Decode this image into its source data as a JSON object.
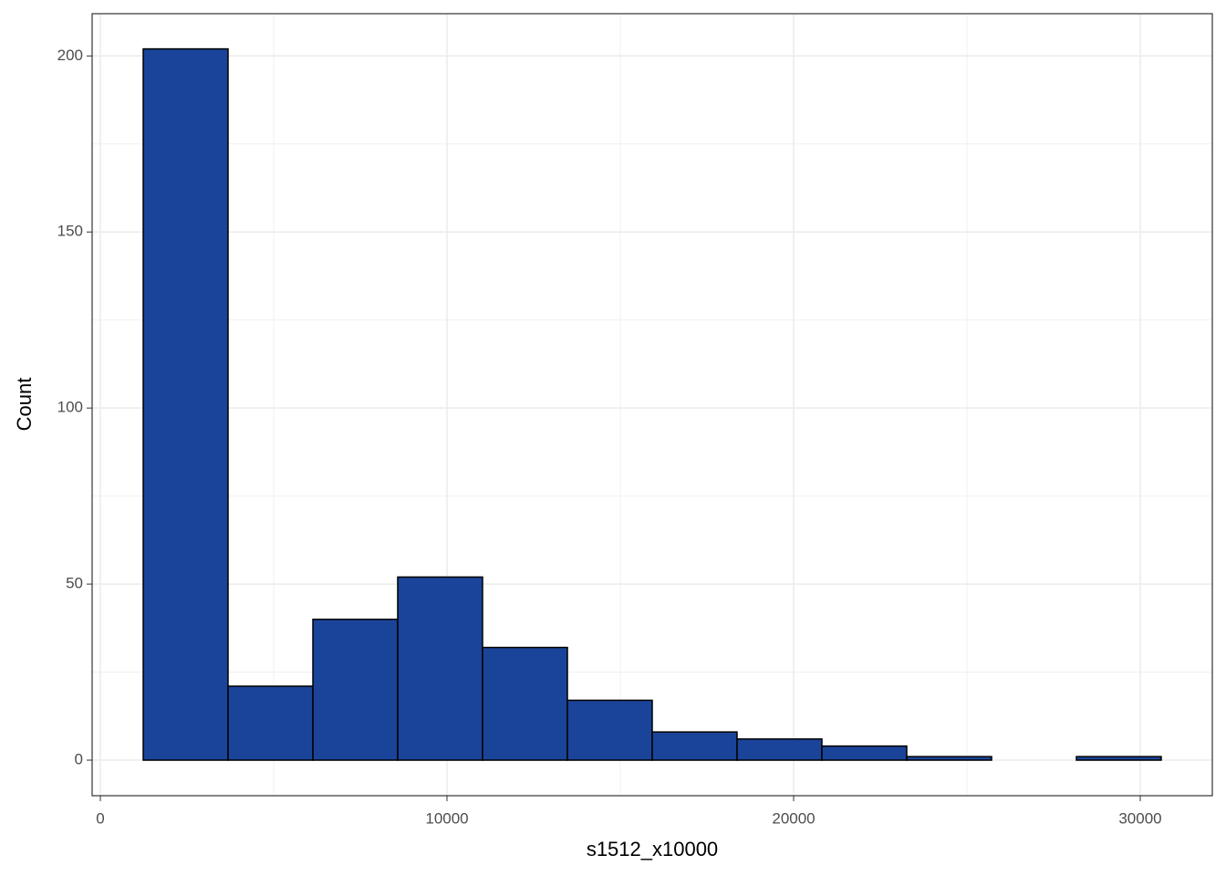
{
  "chart_data": {
    "type": "histogram",
    "xlabel": "s1512_x10000",
    "ylabel": "Count",
    "bins": [
      1237,
      3684,
      6132,
      8579,
      11026,
      13474,
      15921,
      18368,
      20816,
      23263,
      25711,
      28158,
      30605
    ],
    "values": [
      202,
      21,
      40,
      52,
      32,
      17,
      8,
      6,
      4,
      1,
      0,
      1
    ],
    "color": "#1a4499",
    "edgecolor": "#000000",
    "xlim": [
      -237,
      32079
    ],
    "ylim": [
      -10.1,
      212
    ],
    "xticks": [
      0,
      10000,
      20000,
      30000
    ],
    "yticks": [
      0,
      50,
      100,
      150,
      200
    ],
    "grid": true,
    "minor_grid": true
  }
}
